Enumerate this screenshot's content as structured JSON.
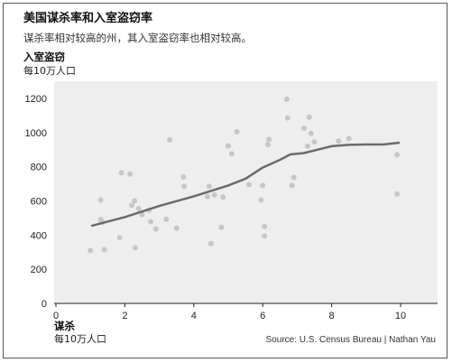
{
  "chart_data": {
    "type": "scatter",
    "title": "美国谋杀率和入室盗窃率",
    "subtitle": "谋杀率相对较高的州，其入室盗窃率也相对较高。",
    "ylabel": "入室盗窃",
    "ylabel_unit": "每10万人口",
    "xlabel": "谋杀",
    "xlabel_unit": "每10万人口",
    "source": "Source: U.S. Census Bureau | Nathan Yau",
    "xlim": [
      0,
      10.5
    ],
    "ylim": [
      0,
      1300
    ],
    "xticks": [
      0,
      2,
      4,
      6,
      8,
      10
    ],
    "yticks": [
      0,
      200,
      400,
      600,
      800,
      1000,
      1200
    ],
    "grid": false,
    "colors": {
      "panel": "#eeeeee",
      "points": "#c7c7c7",
      "trend": "#6b6b6b"
    },
    "points": [
      {
        "x": 1.0,
        "y": 310
      },
      {
        "x": 1.3,
        "y": 490
      },
      {
        "x": 1.3,
        "y": 605
      },
      {
        "x": 1.35,
        "y": 475
      },
      {
        "x": 1.4,
        "y": 315
      },
      {
        "x": 1.85,
        "y": 385
      },
      {
        "x": 1.9,
        "y": 765
      },
      {
        "x": 2.15,
        "y": 757
      },
      {
        "x": 2.2,
        "y": 575
      },
      {
        "x": 2.28,
        "y": 600
      },
      {
        "x": 2.3,
        "y": 325
      },
      {
        "x": 2.4,
        "y": 555
      },
      {
        "x": 2.5,
        "y": 520
      },
      {
        "x": 2.7,
        "y": 545
      },
      {
        "x": 2.75,
        "y": 478
      },
      {
        "x": 2.9,
        "y": 435
      },
      {
        "x": 3.2,
        "y": 492
      },
      {
        "x": 3.3,
        "y": 957
      },
      {
        "x": 3.5,
        "y": 440
      },
      {
        "x": 3.7,
        "y": 740
      },
      {
        "x": 3.72,
        "y": 685
      },
      {
        "x": 4.4,
        "y": 625
      },
      {
        "x": 4.45,
        "y": 685
      },
      {
        "x": 4.5,
        "y": 350
      },
      {
        "x": 4.6,
        "y": 635
      },
      {
        "x": 4.8,
        "y": 445
      },
      {
        "x": 4.85,
        "y": 622
      },
      {
        "x": 5.0,
        "y": 922
      },
      {
        "x": 5.1,
        "y": 875
      },
      {
        "x": 5.25,
        "y": 1005
      },
      {
        "x": 5.6,
        "y": 695
      },
      {
        "x": 5.95,
        "y": 605
      },
      {
        "x": 6.0,
        "y": 690
      },
      {
        "x": 6.05,
        "y": 450
      },
      {
        "x": 6.05,
        "y": 395
      },
      {
        "x": 6.15,
        "y": 930
      },
      {
        "x": 6.18,
        "y": 960
      },
      {
        "x": 6.7,
        "y": 1195
      },
      {
        "x": 6.72,
        "y": 1085
      },
      {
        "x": 6.85,
        "y": 690
      },
      {
        "x": 6.9,
        "y": 737
      },
      {
        "x": 7.2,
        "y": 1025
      },
      {
        "x": 7.3,
        "y": 920
      },
      {
        "x": 7.35,
        "y": 1090
      },
      {
        "x": 7.4,
        "y": 995
      },
      {
        "x": 7.5,
        "y": 945
      },
      {
        "x": 8.2,
        "y": 950
      },
      {
        "x": 8.5,
        "y": 965
      },
      {
        "x": 9.9,
        "y": 640
      },
      {
        "x": 9.9,
        "y": 870
      }
    ],
    "trend": [
      {
        "x": 1.05,
        "y": 455
      },
      {
        "x": 2.0,
        "y": 505
      },
      {
        "x": 3.0,
        "y": 570
      },
      {
        "x": 4.0,
        "y": 627
      },
      {
        "x": 5.0,
        "y": 690
      },
      {
        "x": 5.5,
        "y": 730
      },
      {
        "x": 6.0,
        "y": 795
      },
      {
        "x": 6.5,
        "y": 840
      },
      {
        "x": 6.8,
        "y": 872
      },
      {
        "x": 7.2,
        "y": 880
      },
      {
        "x": 7.6,
        "y": 900
      },
      {
        "x": 8.0,
        "y": 920
      },
      {
        "x": 8.5,
        "y": 928
      },
      {
        "x": 9.0,
        "y": 930
      },
      {
        "x": 9.5,
        "y": 930
      },
      {
        "x": 9.95,
        "y": 940
      }
    ]
  }
}
